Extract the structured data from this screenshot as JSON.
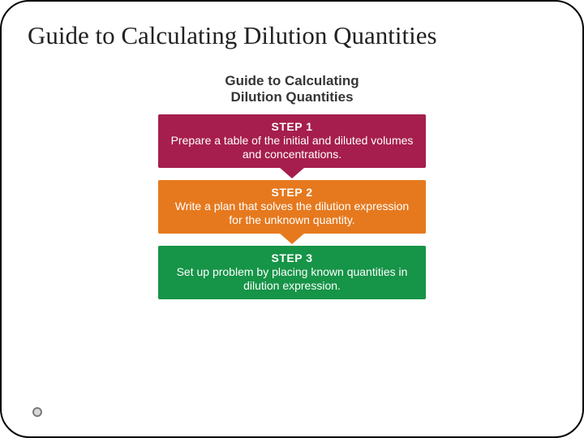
{
  "slide": {
    "title": "Guide to Calculating Dilution Quantities",
    "figure_title_line1": "Guide to Calculating",
    "figure_title_line2": "Dilution Quantities"
  },
  "steps": [
    {
      "label": "STEP 1",
      "body": "Prepare a table of the initial and diluted volumes and concentrations.",
      "bg": "#a61e4d",
      "arrow": "#a61e4d"
    },
    {
      "label": "STEP 2",
      "body": "Write a plan that solves the dilution expression for the unknown quantity.",
      "bg": "#e6791e",
      "arrow": "#e6791e"
    },
    {
      "label": "STEP 3",
      "body": "Set up problem by placing known quantities in dilution expression.",
      "bg": "#169447",
      "arrow": null
    }
  ],
  "styling": {
    "slide_width": 720,
    "slide_height": 540,
    "border_radius": 36,
    "border_color": "#000000",
    "background": "#ffffff",
    "title_fontsize": 31,
    "title_color": "#222222",
    "fig_title_fontsize": 17,
    "fig_title_color": "#353535",
    "step_width": 330,
    "step_fontsize": 14,
    "step_text_color": "#ffffff",
    "arrow_width": 32,
    "arrow_height": 14
  }
}
